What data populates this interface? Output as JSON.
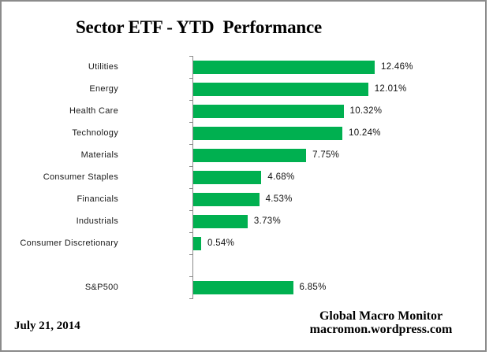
{
  "title": "Sector ETF - YTD  Performance",
  "chart_data": {
    "type": "bar",
    "orientation": "horizontal",
    "title": "Sector ETF - YTD  Performance",
    "bar_color": "#00B050",
    "axis_color": "#8A8A8A",
    "grid": false,
    "legend": false,
    "value_unit": "%",
    "rows": [
      {
        "label": "Utilities",
        "value": 12.46,
        "value_label": "12.46%"
      },
      {
        "label": "Energy",
        "value": 12.01,
        "value_label": "12.01%"
      },
      {
        "label": "Health Care",
        "value": 10.32,
        "value_label": "10.32%"
      },
      {
        "label": "Technology",
        "value": 10.24,
        "value_label": "10.24%"
      },
      {
        "label": "Materials",
        "value": 7.75,
        "value_label": "7.75%"
      },
      {
        "label": "Consumer Staples",
        "value": 4.68,
        "value_label": "4.68%"
      },
      {
        "label": "Financials",
        "value": 4.53,
        "value_label": "4.53%"
      },
      {
        "label": "Industrials",
        "value": 3.73,
        "value_label": "3.73%"
      },
      {
        "label": "Consumer Discretionary",
        "value": 0.54,
        "value_label": "0.54%"
      },
      {
        "label": "",
        "value": null,
        "value_label": ""
      },
      {
        "label": "S&P500",
        "value": 6.85,
        "value_label": "6.85%"
      }
    ]
  },
  "footer": {
    "date": "July 21, 2014",
    "source_line1": "Global Macro Monitor",
    "source_line2": "macromon.wordpress.com"
  }
}
